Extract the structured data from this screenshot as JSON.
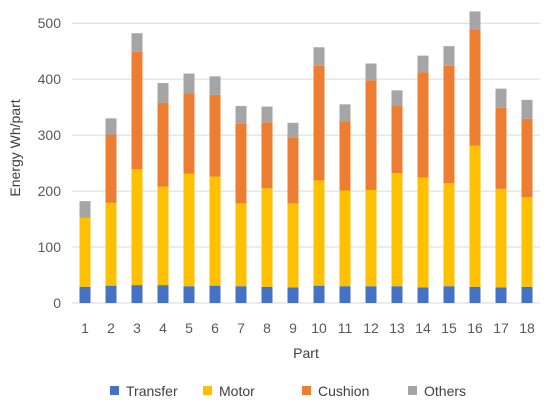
{
  "chart_data": {
    "type": "bar",
    "stacked": true,
    "title": "",
    "xlabel": "Part",
    "ylabel": "Energy Wh/part",
    "ylim": [
      0,
      520
    ],
    "yticks": [
      0,
      100,
      200,
      300,
      400,
      500
    ],
    "grid": "horizontal",
    "legend_position": "bottom",
    "categories": [
      "1",
      "2",
      "3",
      "4",
      "5",
      "6",
      "7",
      "8",
      "9",
      "10",
      "11",
      "12",
      "13",
      "14",
      "15",
      "16",
      "17",
      "18"
    ],
    "series": [
      {
        "name": "Transfer",
        "color": "#4472C4",
        "values": [
          29,
          31,
          32,
          32,
          30,
          31,
          30,
          29,
          28,
          31,
          30,
          30,
          30,
          28,
          30,
          29,
          28,
          29
        ]
      },
      {
        "name": "Motor",
        "color": "#FFC000",
        "values": [
          123,
          148,
          207,
          176,
          201,
          195,
          148,
          176,
          150,
          188,
          171,
          172,
          202,
          196,
          184,
          252,
          176,
          160
        ]
      },
      {
        "name": "Cushion",
        "color": "#ED7D31",
        "values": [
          0,
          122,
          210,
          150,
          144,
          146,
          142,
          118,
          117,
          205,
          124,
          196,
          120,
          188,
          210,
          208,
          145,
          140
        ]
      },
      {
        "name": "Others",
        "color": "#A5A5A5",
        "values": [
          30,
          29,
          33,
          35,
          35,
          33,
          32,
          28,
          27,
          33,
          30,
          30,
          28,
          30,
          35,
          32,
          34,
          34
        ]
      }
    ]
  }
}
